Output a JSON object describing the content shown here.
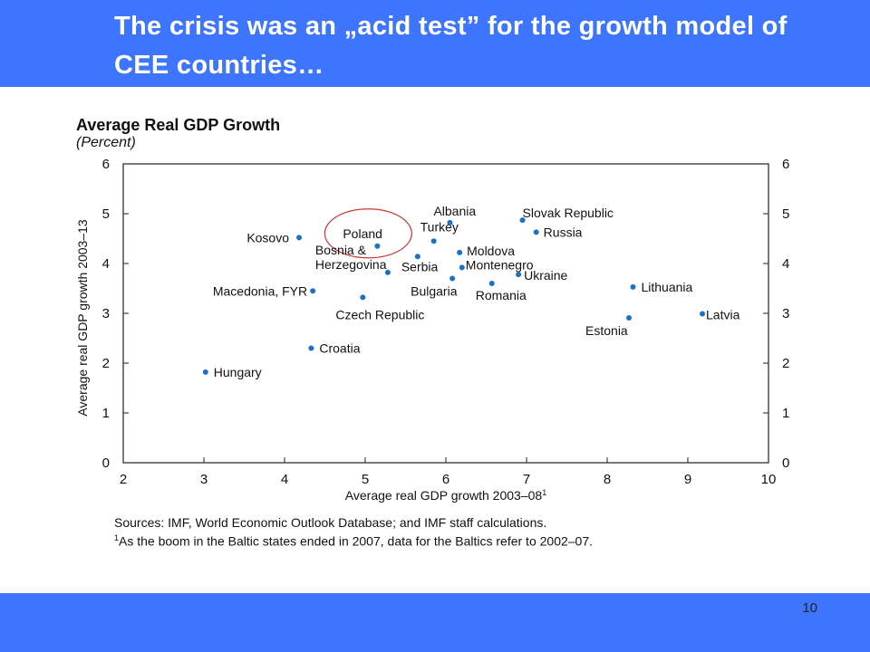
{
  "slide": {
    "title": "The crisis was an „acid test” for the growth model of CEE countries…",
    "page_number": "10",
    "colors": {
      "banner": "#3e75ff",
      "title_text": "#ffffff",
      "marker": "#1a72c6",
      "highlight_circle": "#cc3333"
    }
  },
  "chart_data": {
    "type": "scatter",
    "title": "Average Real GDP Growth",
    "subtitle": "(Percent)",
    "xlabel": "Average real GDP growth 2003–08",
    "xlabel_sup": "1",
    "ylabel": "Average real GDP growth 2003–13",
    "xlim": [
      2,
      10
    ],
    "ylim": [
      0,
      6
    ],
    "xticks": [
      2,
      3,
      4,
      5,
      6,
      7,
      8,
      9,
      10
    ],
    "yticks": [
      0,
      1,
      2,
      3,
      4,
      5,
      6
    ],
    "grid": false,
    "right_axis": true,
    "highlighted": "Poland",
    "points": [
      {
        "label": "Hungary",
        "x": 3.02,
        "y": 1.82
      },
      {
        "label": "Croatia",
        "x": 4.33,
        "y": 2.3
      },
      {
        "label": "Macedonia, FYR",
        "x": 4.35,
        "y": 3.45
      },
      {
        "label": "Kosovo",
        "x": 4.18,
        "y": 4.52
      },
      {
        "label": "Czech Republic",
        "x": 4.97,
        "y": 3.32
      },
      {
        "label": "Poland",
        "x": 5.15,
        "y": 4.35
      },
      {
        "label": "Bosnia & Herzegovina",
        "x": 5.28,
        "y": 3.82
      },
      {
        "label": "Serbia",
        "x": 5.65,
        "y": 4.14
      },
      {
        "label": "Turkey",
        "x": 5.85,
        "y": 4.45
      },
      {
        "label": "Albania",
        "x": 6.05,
        "y": 4.82
      },
      {
        "label": "Bulgaria",
        "x": 6.08,
        "y": 3.7
      },
      {
        "label": "Moldova",
        "x": 6.17,
        "y": 4.22
      },
      {
        "label": "Montenegro",
        "x": 6.2,
        "y": 3.92
      },
      {
        "label": "Romania",
        "x": 6.57,
        "y": 3.6
      },
      {
        "label": "Ukraine",
        "x": 6.9,
        "y": 3.78
      },
      {
        "label": "Slovak Republic",
        "x": 6.95,
        "y": 4.87
      },
      {
        "label": "Russia",
        "x": 7.12,
        "y": 4.63
      },
      {
        "label": "Lithuania",
        "x": 8.32,
        "y": 3.53
      },
      {
        "label": "Estonia",
        "x": 8.27,
        "y": 2.91
      },
      {
        "label": "Latvia",
        "x": 9.18,
        "y": 2.99
      }
    ]
  },
  "notes": {
    "sources": "Sources: IMF, World Economic Outlook Database; and IMF staff calculations.",
    "footnote_mark": "1",
    "footnote": "As the boom in the Baltic states ended in 2007, data for the Baltics refer to 2002–07."
  }
}
